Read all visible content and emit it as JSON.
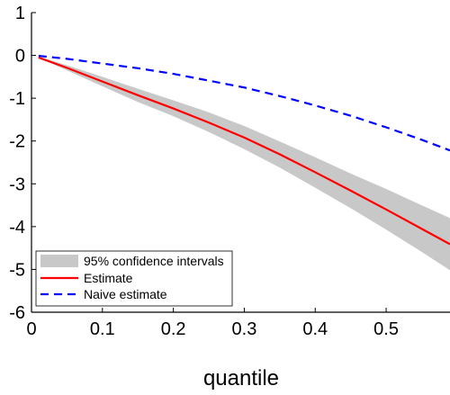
{
  "chart_data": {
    "type": "line",
    "title": "",
    "xlabel": "quantile",
    "ylabel": "",
    "xlim": [
      0,
      0.59
    ],
    "ylim": [
      -6,
      1
    ],
    "x_ticks": [
      0,
      0.1,
      0.2,
      0.3,
      0.4,
      0.5
    ],
    "x_tick_labels": [
      "0",
      "0.1",
      "0.2",
      "0.3",
      "0.4",
      "0.5"
    ],
    "y_ticks": [
      1,
      0,
      -1,
      -2,
      -3,
      -4,
      -5,
      -6
    ],
    "y_tick_labels": [
      "1",
      "0",
      "-1",
      "-2",
      "-3",
      "-4",
      "-5",
      "-6"
    ],
    "grid": false,
    "legend_position": "bottom-left",
    "x": [
      0.01,
      0.05,
      0.1,
      0.15,
      0.2,
      0.25,
      0.3,
      0.35,
      0.4,
      0.45,
      0.5,
      0.55,
      0.59
    ],
    "series": [
      {
        "name": "95% confidence intervals",
        "kind": "band",
        "color": "#c8c8c8",
        "lower": [
          -0.05,
          -0.35,
          -0.72,
          -1.09,
          -1.42,
          -1.79,
          -2.19,
          -2.62,
          -3.09,
          -3.57,
          -4.07,
          -4.59,
          -5.02
        ],
        "upper": [
          -0.03,
          -0.23,
          -0.5,
          -0.78,
          -1.05,
          -1.33,
          -1.65,
          -2.01,
          -2.38,
          -2.76,
          -3.12,
          -3.5,
          -3.8
        ]
      },
      {
        "name": "Estimate",
        "kind": "line",
        "color": "#ff0000",
        "dash": "solid",
        "values": [
          -0.05,
          -0.29,
          -0.61,
          -0.93,
          -1.24,
          -1.57,
          -1.92,
          -2.31,
          -2.73,
          -3.16,
          -3.6,
          -4.05,
          -4.41
        ]
      },
      {
        "name": "Naive estimate",
        "kind": "line",
        "color": "#0000ff",
        "dash": "dashed",
        "values": [
          -0.01,
          -0.08,
          -0.19,
          -0.3,
          -0.43,
          -0.59,
          -0.75,
          -0.95,
          -1.17,
          -1.41,
          -1.68,
          -1.97,
          -2.22
        ]
      }
    ]
  }
}
